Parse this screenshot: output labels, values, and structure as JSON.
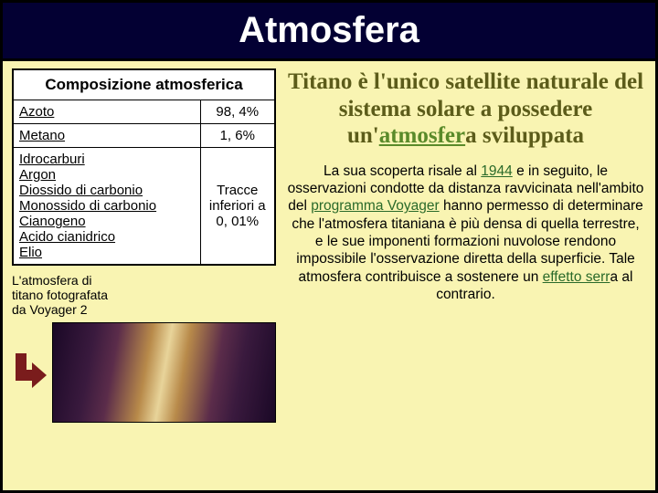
{
  "title": "Atmosfera",
  "table": {
    "header": "Composizione atmosferica",
    "rows": [
      {
        "name": "Azoto",
        "value": "98, 4%"
      },
      {
        "name": "Metano",
        "value": "1, 6%"
      }
    ],
    "trace_row": {
      "items": [
        "Idrocarburi",
        "Argon",
        "Diossido di carbonio",
        "Monossido di carbonio",
        "Cianogeno",
        "Acido cianidrico",
        "Elio"
      ],
      "value": "Tracce inferiori a 0, 01%"
    }
  },
  "caption": {
    "l1": "L'atmosfera di",
    "l2": "titano fotografata",
    "l3": "da Voyager 2"
  },
  "headline": {
    "pre": "Titano è l'unico satellite naturale del sistema solare a possedere un'",
    "link": "atmosfer",
    "post": "a sviluppata"
  },
  "body": {
    "p1a": "La sua scoperta risale al ",
    "year": "1944",
    "p1b": " e in seguito, le osservazioni condotte da distanza ravvicinata nell'ambito del ",
    "voyager": "programma Voyager",
    "p1c": " hanno permesso di determinare che l'atmosfera titaniana è più densa di quella terrestre, e le sue imponenti formazioni nuvolose rendono impossibile l'osservazione diretta della superficie. Tale atmosfera contribuisce a sostenere un ",
    "effetto": "effetto serr",
    "p1d": "a al contrario."
  },
  "colors": {
    "slide_bg": "#f9f4b2",
    "title_bg": "#030033",
    "headline_color": "#5c5c1a",
    "link_green": "#5a8a2a",
    "arrow_color": "#7a1c1c"
  }
}
